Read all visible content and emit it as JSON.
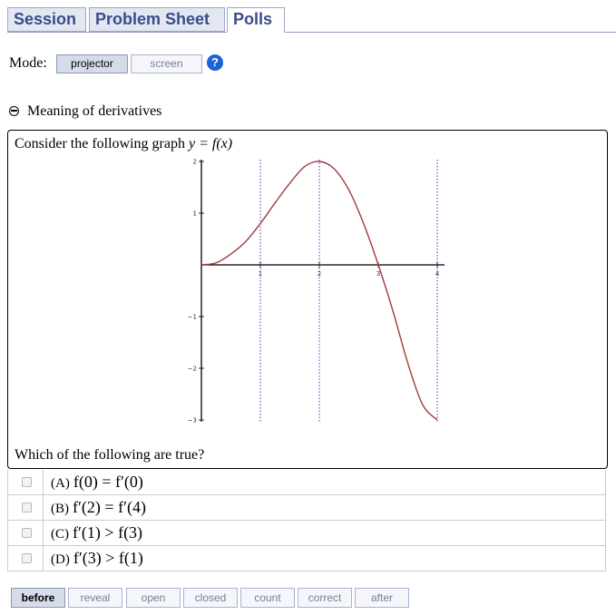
{
  "tabs": [
    {
      "label": "Session",
      "active": false
    },
    {
      "label": "Problem Sheet",
      "active": false
    },
    {
      "label": "Polls",
      "active": true
    }
  ],
  "mode": {
    "label": "Mode:",
    "options": [
      {
        "label": "projector",
        "active": true
      },
      {
        "label": "screen",
        "active": false
      }
    ],
    "help": "?"
  },
  "section": {
    "title": "Meaning of derivatives"
  },
  "question": {
    "prompt_text": "Consider the following graph ",
    "prompt_math": "y = f(x)",
    "footer": "Which of the following are true?"
  },
  "chart_data": {
    "type": "line",
    "title": "",
    "xlabel": "",
    "ylabel": "",
    "x_ticks": [
      1,
      2,
      3,
      4
    ],
    "y_ticks": [
      2,
      1,
      -1,
      -2,
      -3
    ],
    "xlim": [
      0,
      4
    ],
    "ylim": [
      -3,
      2
    ],
    "vertical_reference_lines": [
      1,
      2,
      4
    ],
    "series": [
      {
        "color": "#a33a3a",
        "x": [
          0,
          0.25,
          0.5,
          0.75,
          1,
          1.25,
          1.5,
          1.75,
          2,
          2.25,
          2.5,
          2.75,
          3,
          3.25,
          3.5,
          3.75,
          4
        ],
        "y": [
          0,
          0.04,
          0.21,
          0.45,
          0.8,
          1.2,
          1.58,
          1.9,
          2.0,
          1.86,
          1.45,
          0.8,
          0.0,
          -0.9,
          -1.9,
          -2.7,
          -3.0
        ]
      }
    ]
  },
  "options": [
    {
      "letter": "(A)",
      "expr": "f(0) = f′(0)"
    },
    {
      "letter": "(B)",
      "expr": "f′(2) = f′(4)"
    },
    {
      "letter": "(C)",
      "expr": "f′(1) > f(3)"
    },
    {
      "letter": "(D)",
      "expr": "f′(3) > f(1)"
    }
  ],
  "states": [
    {
      "label": "before",
      "active": true
    },
    {
      "label": "reveal",
      "active": false
    },
    {
      "label": "open",
      "active": false
    },
    {
      "label": "closed",
      "active": false
    },
    {
      "label": "count",
      "active": false
    },
    {
      "label": "correct",
      "active": false
    },
    {
      "label": "after",
      "active": false
    }
  ]
}
